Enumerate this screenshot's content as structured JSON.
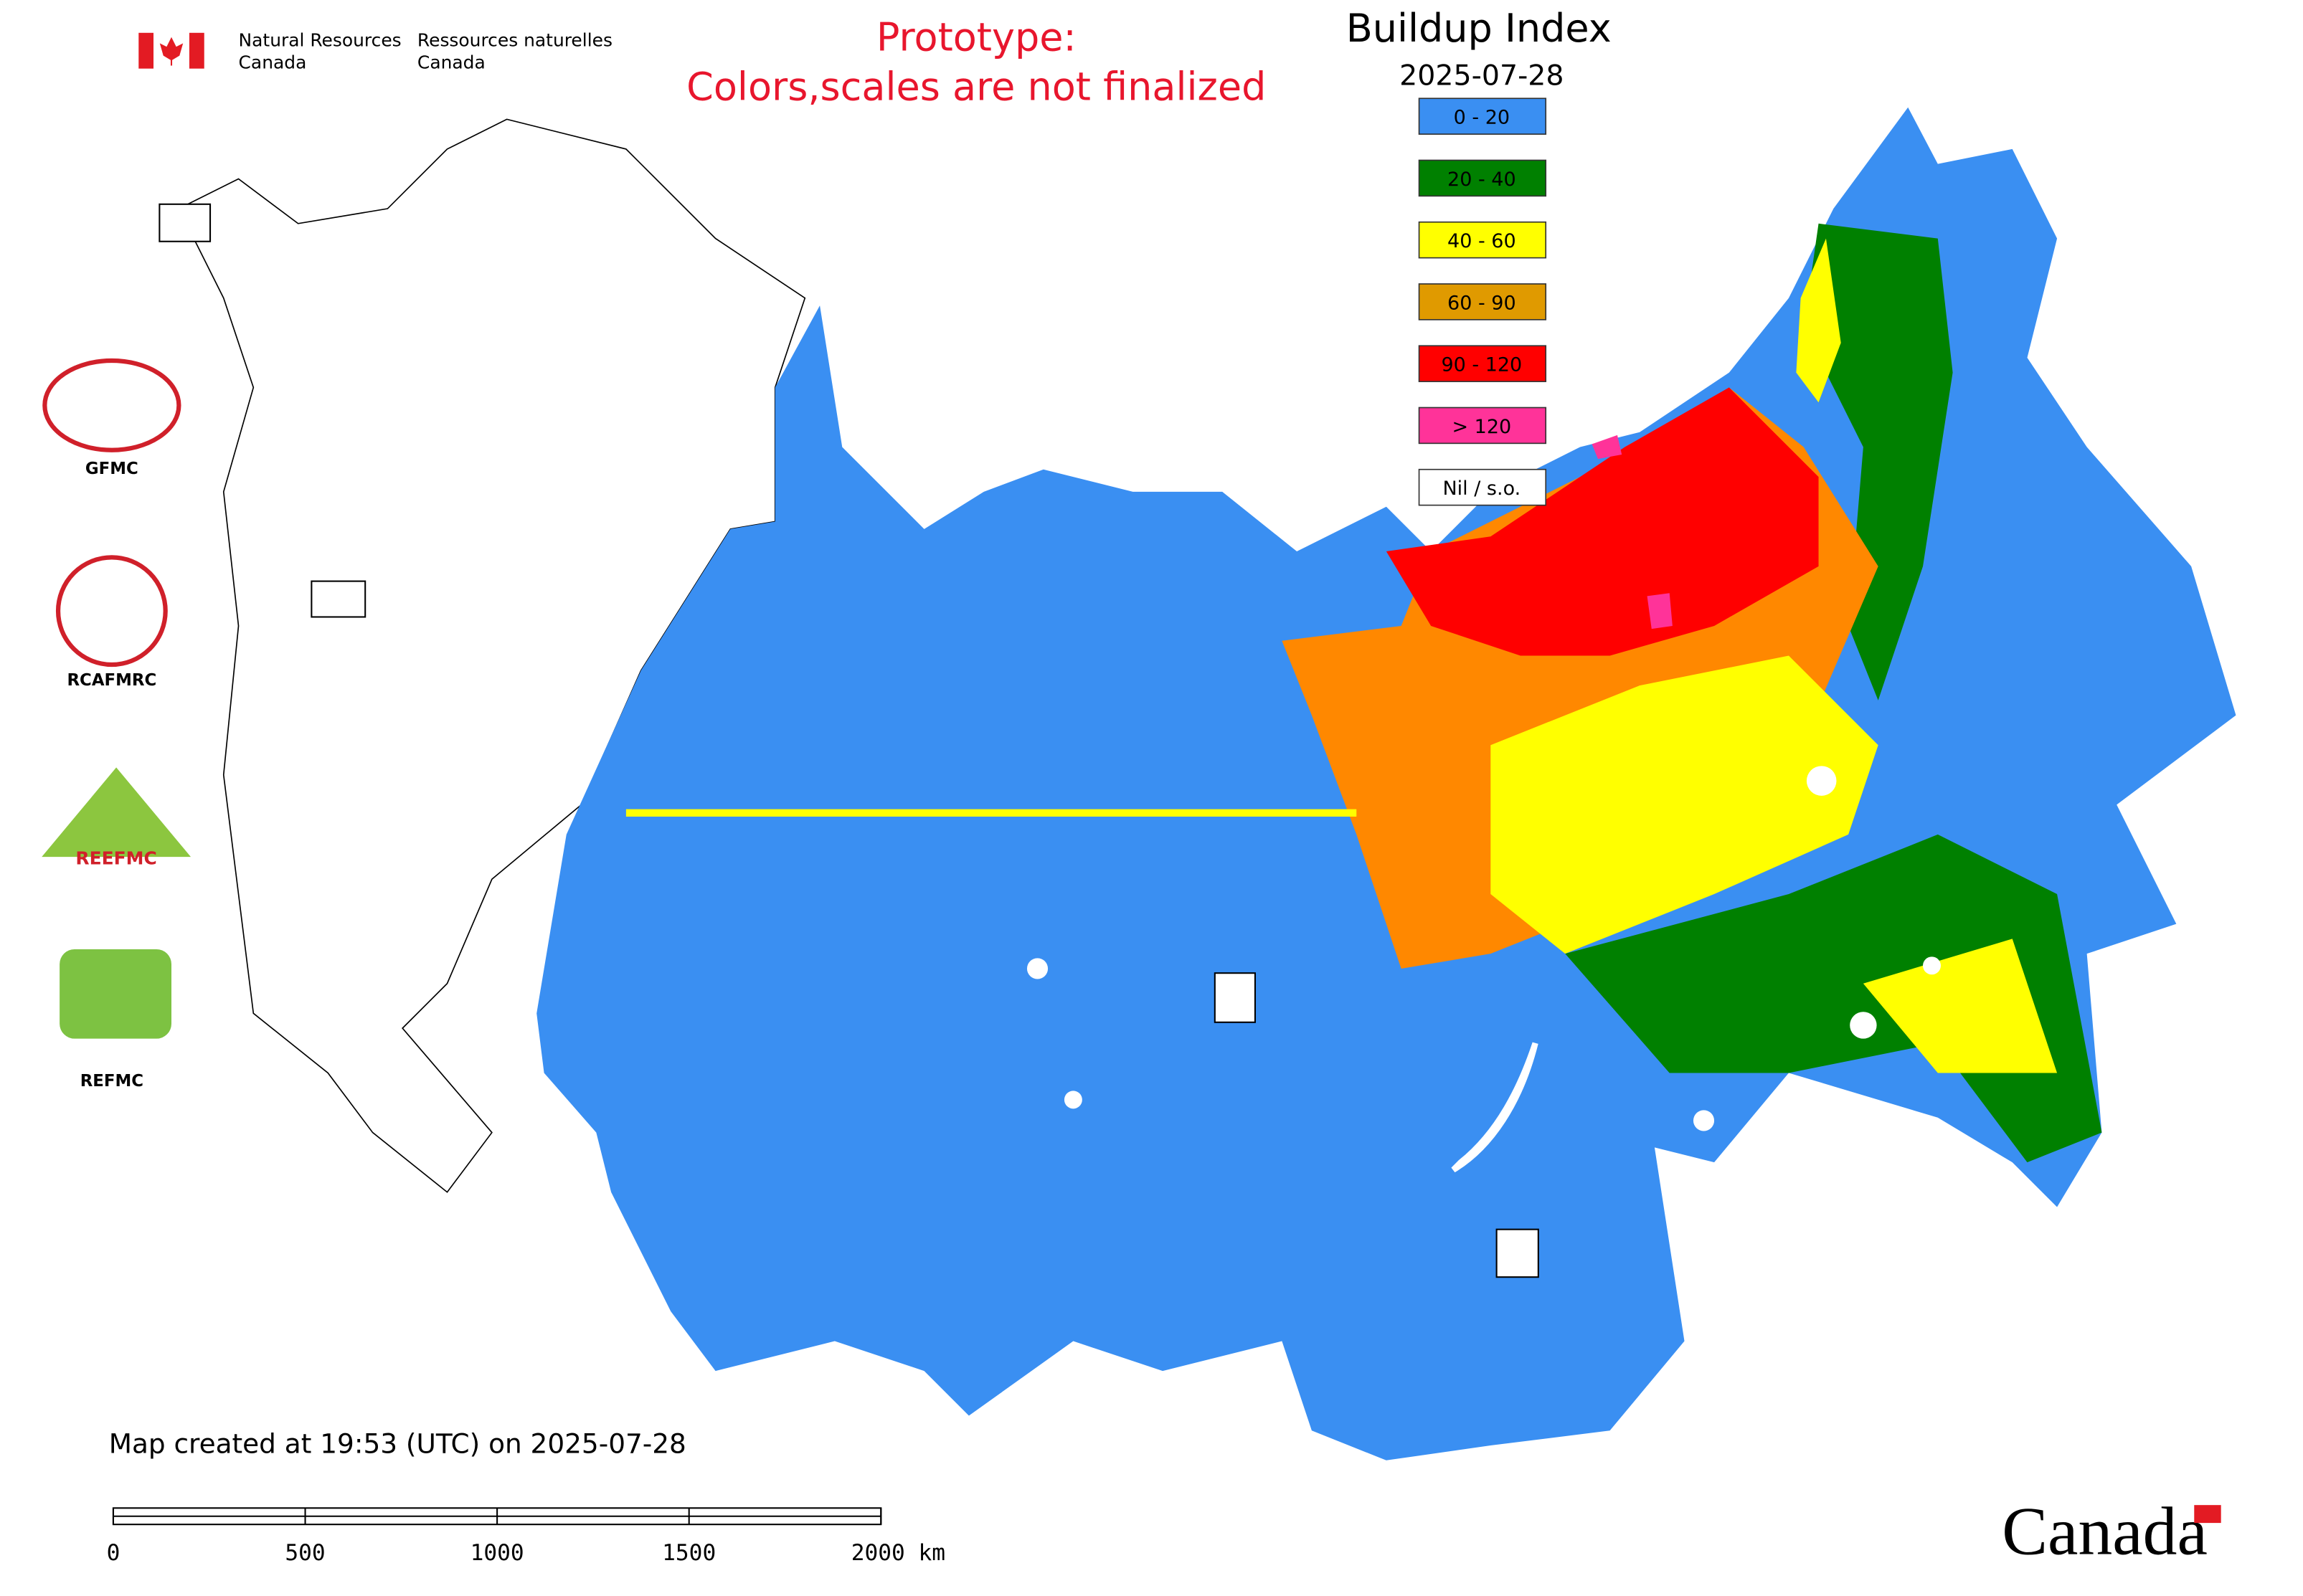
{
  "header": {
    "dept_en_line1": "Natural Resources",
    "dept_en_line2": "Canada",
    "dept_fr_line1": "Ressources naturelles",
    "dept_fr_line2": "Canada"
  },
  "notice": {
    "line1": "Prototype:",
    "line2": "Colors,scales are not finalized"
  },
  "legend": {
    "title": "Buildup Index",
    "date": "2025-07-28",
    "items": [
      {
        "label": "0 - 20",
        "color": "#3a8ff2"
      },
      {
        "label": "20 - 40",
        "color": "#008000"
      },
      {
        "label": "40 - 60",
        "color": "#ffff00"
      },
      {
        "label": "60 - 90",
        "color": "#e09a00"
      },
      {
        "label": "90 - 120",
        "color": "#ff0000"
      },
      {
        "label": "> 120",
        "color": "#ff3399"
      },
      {
        "label": "Nil / s.o.",
        "color": "#ffffff"
      }
    ]
  },
  "logos": [
    "GFMC",
    "RCAFMRC",
    "REEFMC",
    "REFMC"
  ],
  "footer": {
    "created": "Map created at 19:53 (UTC) on 2025-07-28",
    "scale_labels": [
      "0",
      "500",
      "1000",
      "1500",
      "2000 km"
    ],
    "wordmark": "Canada"
  }
}
